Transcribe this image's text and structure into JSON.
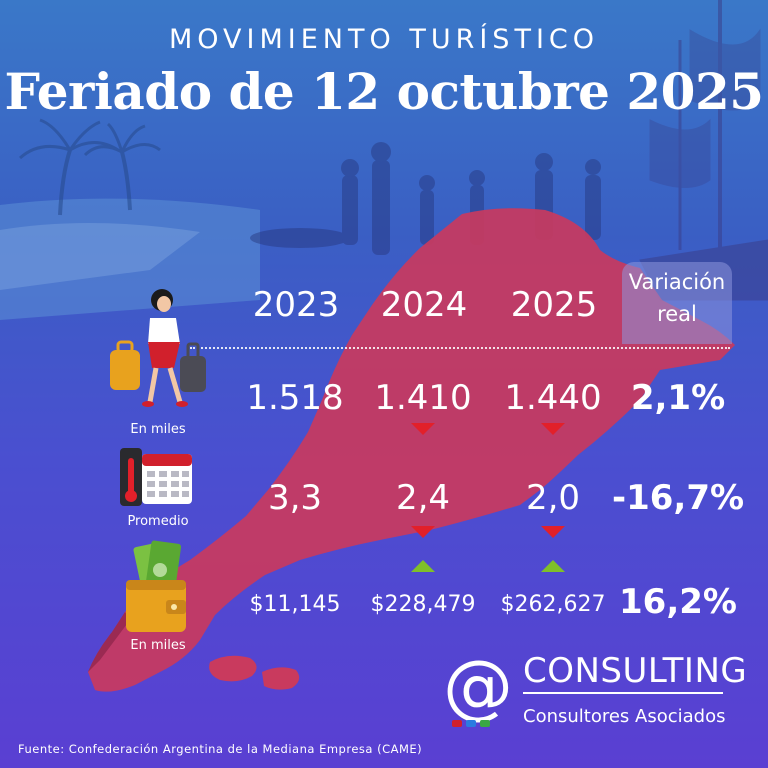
{
  "header": {
    "kicker": "MOVIMIENTO TURÍSTICO",
    "title": "Feriado de 12 octubre 2025"
  },
  "table": {
    "years": [
      "2023",
      "2024",
      "2025"
    ],
    "variation_header": "Variación\nreal",
    "rows": [
      {
        "icon": "traveler-icon",
        "icon_label": "En miles",
        "values": [
          "1.518",
          "1.410",
          "1.440"
        ],
        "variation": "2,1%",
        "trends": [
          "",
          "down",
          "down"
        ]
      },
      {
        "icon": "calendar-thermometer-icon",
        "icon_label": "Promedio",
        "values": [
          "3,3",
          "2,4",
          "2,0"
        ],
        "variation": "-16,7%",
        "trends": [
          "",
          "down",
          "down"
        ]
      },
      {
        "icon": "wallet-cash-icon",
        "icon_label": "En miles",
        "values": [
          "$11,145",
          "$228,479",
          "$262,627"
        ],
        "variation": "16,2%",
        "trends": [
          "",
          "up",
          "up"
        ]
      }
    ]
  },
  "brand": {
    "symbol": "@",
    "name": "CONSULTING",
    "tagline": "Consultores Asociados"
  },
  "footer": {
    "source": "Fuente: Confederación Argentina de la Mediana Empresa (CAME)"
  },
  "colors": {
    "map_red": "#c93a5e",
    "trend_down": "#e2202a",
    "trend_up": "#7fbf2a"
  }
}
